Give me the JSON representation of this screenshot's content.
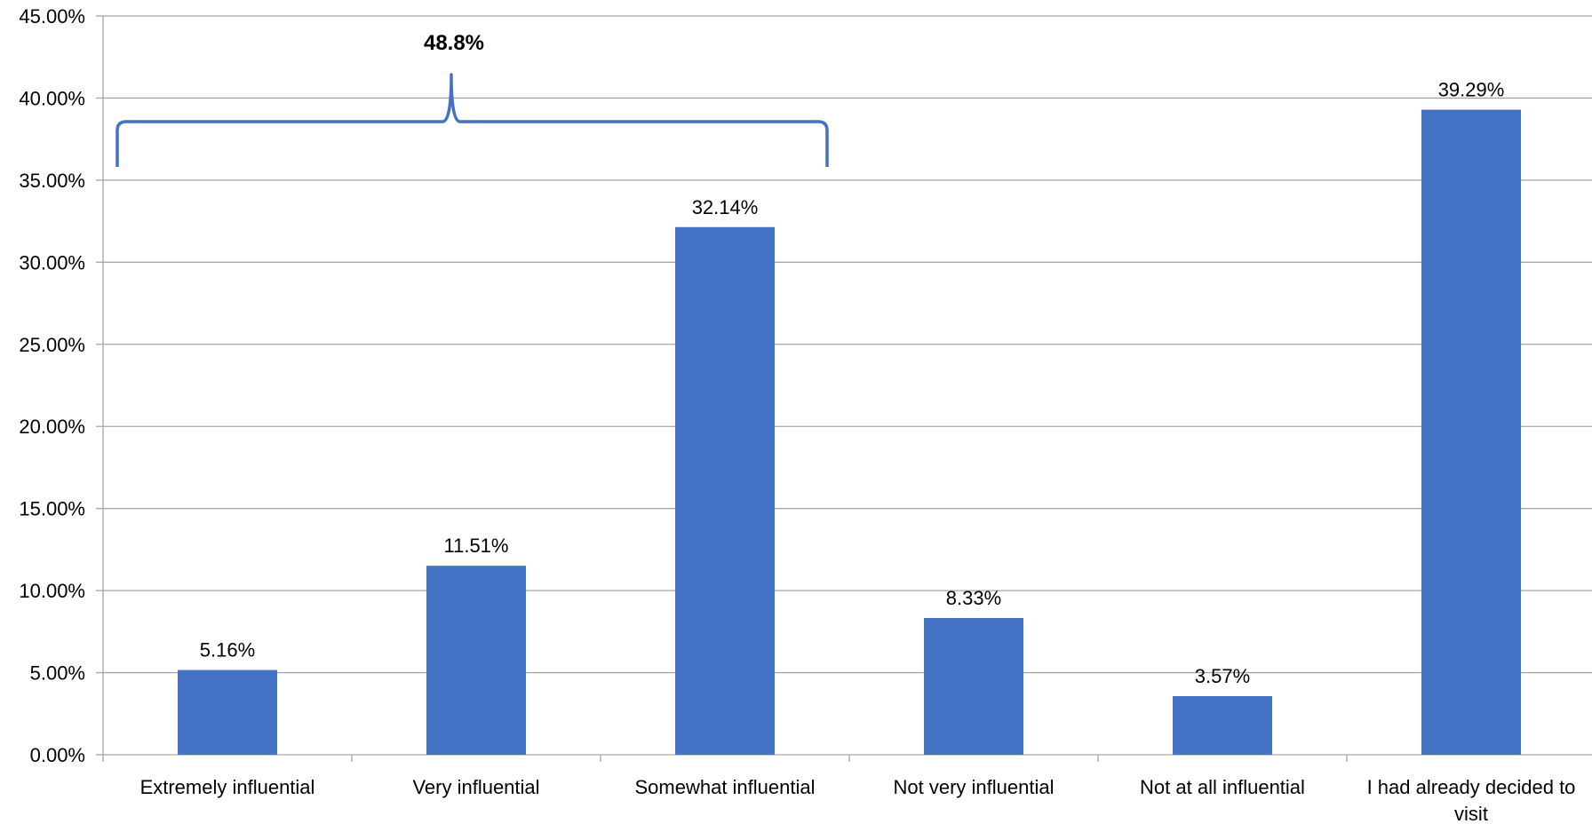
{
  "chart_data": {
    "type": "bar",
    "categories": [
      [
        "Extremely influential"
      ],
      [
        "Very influential"
      ],
      [
        "Somewhat influential"
      ],
      [
        "Not very influential"
      ],
      [
        "Not at all influential"
      ],
      [
        "I had already decided to",
        "visit"
      ]
    ],
    "values": [
      5.16,
      11.51,
      32.14,
      8.33,
      3.57,
      39.29
    ],
    "value_labels": [
      "5.16%",
      "11.51%",
      "32.14%",
      "8.33%",
      "3.57%",
      "39.29%"
    ],
    "ylim": [
      0,
      45
    ],
    "yticks": [
      0,
      5,
      10,
      15,
      20,
      25,
      30,
      35,
      40,
      45
    ],
    "ytick_labels": [
      "0.00%",
      "5.00%",
      "10.00%",
      "15.00%",
      "20.00%",
      "25.00%",
      "30.00%",
      "35.00%",
      "40.00%",
      "45.00%"
    ],
    "bar_color": "#4472C4",
    "grid": true,
    "bracket": {
      "label": "48.8%",
      "spans_categories": [
        0,
        2
      ],
      "color": "#4472C4"
    }
  }
}
